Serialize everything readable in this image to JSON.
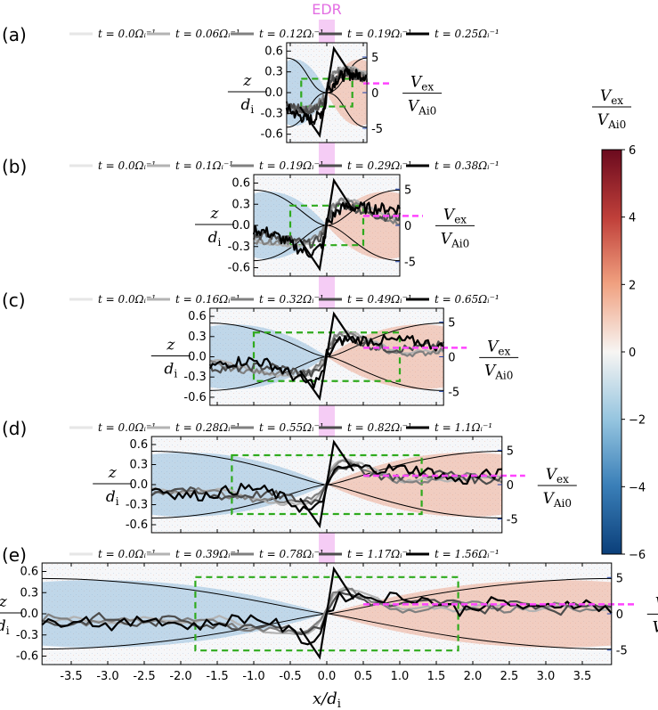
{
  "chart_data": {
    "type": "line",
    "edr_label": "EDR",
    "xlabel": "x/d",
    "xlabel_sub": "i",
    "ylabel_num": "z",
    "ylabel_den": "d",
    "ylabel_den_sub": "i",
    "right_label_num": "V",
    "right_label_num_sub": "ex",
    "right_label_den": "V",
    "right_label_den_sub": "Ai0",
    "colorbar": {
      "label_num": "V",
      "label_num_sub": "ex",
      "label_den": "V",
      "label_den_sub": "Ai0",
      "range": [
        -6,
        6
      ],
      "ticks": [
        "6",
        "4",
        "2",
        "0",
        "−2",
        "−4",
        "−6"
      ],
      "colors": {
        "neg": "#0b3f7a",
        "mid": "#f7f5f3",
        "pos": "#6b0a1e"
      }
    },
    "colors": {
      "edr": "#e36ee3",
      "box": "#2faa1d",
      "dashed_ref": "#ff44ff",
      "legend_grays": [
        "#e6e6e6",
        "#b3b3b3",
        "#808080",
        "#4d4d4d",
        "#000000"
      ]
    },
    "x_ticks": [
      "-3.5",
      "-3.0",
      "-2.5",
      "-2.0",
      "-1.5",
      "-1.0",
      "-0.5",
      "0.0",
      "0.5",
      "1.0",
      "1.5",
      "2.0",
      "2.5",
      "3.0",
      "3.5"
    ],
    "x_tick_values": [
      -3.5,
      -3.0,
      -2.5,
      -2.0,
      -1.5,
      -1.0,
      -0.5,
      0.0,
      0.5,
      1.0,
      1.5,
      2.0,
      2.5,
      3.0,
      3.5
    ],
    "y_ticks": [
      "0.6",
      "0.3",
      "0.0",
      "-0.3",
      "-0.6"
    ],
    "y_tick_values": [
      0.6,
      0.3,
      0.0,
      -0.3,
      -0.6
    ],
    "right_ticks": [
      "5",
      "0",
      "-5"
    ],
    "right_tick_values": [
      5,
      0,
      -5
    ],
    "panels": [
      {
        "label": "(a)",
        "xlim": [
          -0.55,
          0.55
        ],
        "legend": [
          "t = 0.0Ωᵢ⁻¹",
          "t = 0.06Ωᵢ⁻¹",
          "t = 0.12Ωᵢ⁻¹",
          "t = 0.19Ωᵢ⁻¹",
          "t = 0.25Ωᵢ⁻¹"
        ],
        "box": [
          -0.35,
          0.35
        ]
      },
      {
        "label": "(b)",
        "xlim": [
          -1.0,
          1.0
        ],
        "legend": [
          "t = 0.0Ωᵢ⁻¹",
          "t = 0.1Ωᵢ⁻¹",
          "t = 0.19Ωᵢ⁻¹",
          "t = 0.29Ωᵢ⁻¹",
          "t = 0.38Ωᵢ⁻¹"
        ],
        "box": [
          -0.5,
          0.5
        ]
      },
      {
        "label": "(c)",
        "xlim": [
          -1.6,
          1.6
        ],
        "legend": [
          "t = 0.0Ωᵢ⁻¹",
          "t = 0.16Ωᵢ⁻¹",
          "t = 0.32Ωᵢ⁻¹",
          "t = 0.49Ωᵢ⁻¹",
          "t = 0.65Ωᵢ⁻¹"
        ],
        "box": [
          -1.0,
          1.0
        ]
      },
      {
        "label": "(d)",
        "xlim": [
          -2.4,
          2.4
        ],
        "legend": [
          "t = 0.0Ωᵢ⁻¹",
          "t = 0.28Ωᵢ⁻¹",
          "t = 0.55Ωᵢ⁻¹",
          "t = 0.82Ωᵢ⁻¹",
          "t = 1.1Ωᵢ⁻¹"
        ],
        "box": [
          -1.3,
          1.3
        ]
      },
      {
        "label": "(e)",
        "xlim": [
          -3.9,
          3.9
        ],
        "legend": [
          "t = 0.0Ωᵢ⁻¹",
          "t = 0.39Ωᵢ⁻¹",
          "t = 0.78Ωᵢ⁻¹",
          "t = 1.17Ωᵢ⁻¹",
          "t = 1.56Ωᵢ⁻¹"
        ],
        "box": [
          -1.8,
          1.8
        ]
      }
    ]
  }
}
